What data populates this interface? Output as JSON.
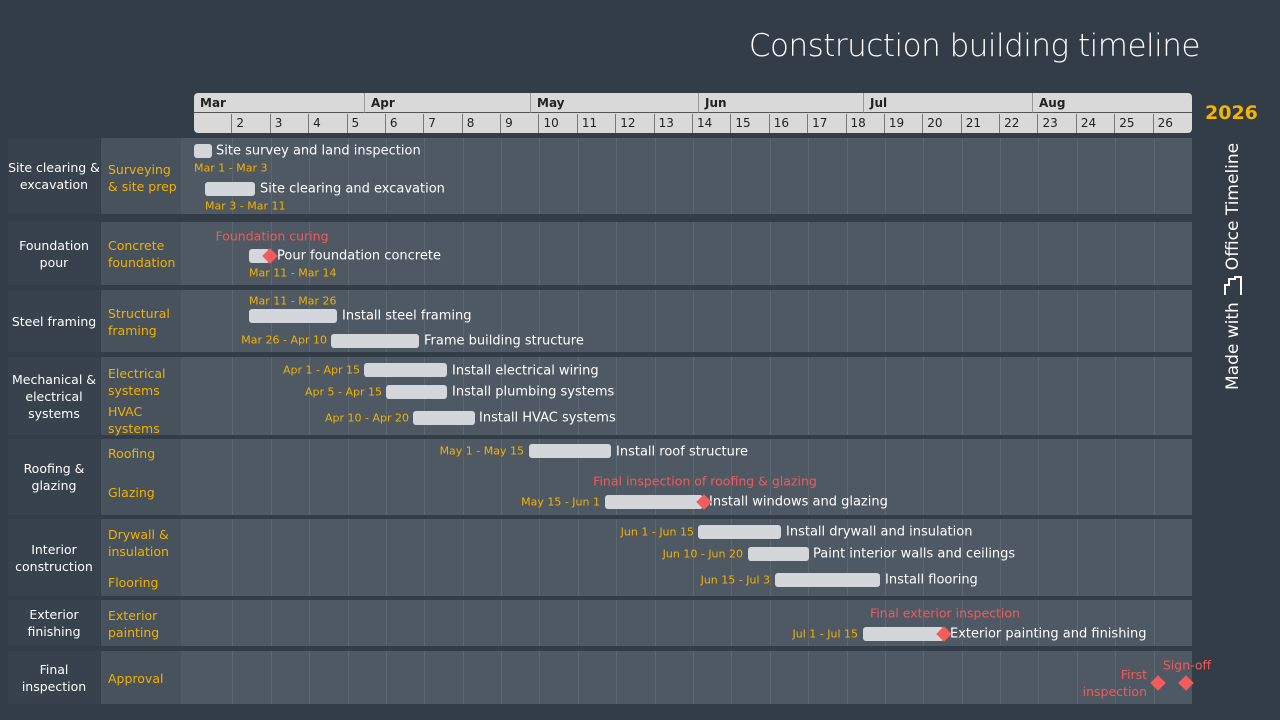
{
  "title": "Construction building timeline",
  "year": "2026",
  "brand": {
    "made_with": "Made with",
    "name": "Office Timeline"
  },
  "months": [
    "Mar",
    "Apr",
    "May",
    "Jun",
    "Jul",
    "Aug"
  ],
  "weeks": [
    "",
    "2",
    "3",
    "4",
    "5",
    "6",
    "7",
    "8",
    "9",
    "10",
    "11",
    "12",
    "13",
    "14",
    "15",
    "16",
    "17",
    "18",
    "19",
    "20",
    "21",
    "22",
    "23",
    "24",
    "25",
    "26"
  ],
  "groups": [
    "Site clearing & excavation",
    "Foundation pour",
    "Steel framing",
    "Mechanical & electrical systems",
    "Roofing & glazing",
    "Interior construction",
    "Exterior finishing",
    "Final inspection"
  ],
  "subgroups": [
    "Surveying & site prep",
    "Concrete foundation",
    "Structural framing",
    "Electrical systems",
    "HVAC systems",
    "Roofing",
    "Glazing",
    "Drywall & insulation",
    "Flooring",
    "Exterior painting",
    "Approval"
  ],
  "tasks": [
    {
      "name": "Site survey and land inspection",
      "dates": "Mar 1 - Mar 3"
    },
    {
      "name": "Site clearing and excavation",
      "dates": "Mar 3 - Mar 11"
    },
    {
      "name": "Pour foundation concrete",
      "dates": "Mar 11 - Mar 14"
    },
    {
      "name": "Install steel framing",
      "dates": "Mar 11 - Mar 26"
    },
    {
      "name": "Frame building structure",
      "dates": "Mar 26 - Apr 10"
    },
    {
      "name": "Install electrical wiring",
      "dates": "Apr 1 - Apr 15"
    },
    {
      "name": "Install plumbing systems",
      "dates": "Apr 5 - Apr 15"
    },
    {
      "name": "Install HVAC systems",
      "dates": "Apr 10 - Apr 20"
    },
    {
      "name": "Install roof structure",
      "dates": "May 1 - May 15"
    },
    {
      "name": "Install windows and glazing",
      "dates": "May 15 - Jun 1"
    },
    {
      "name": "Install drywall and insulation",
      "dates": "Jun 1 - Jun 15"
    },
    {
      "name": "Paint interior walls and ceilings",
      "dates": "Jun 10 - Jun 20"
    },
    {
      "name": "Install flooring",
      "dates": "Jun 15 - Jul 3"
    },
    {
      "name": "Exterior painting and finishing",
      "dates": "Jul 1 - Jul 15"
    }
  ],
  "milestones": [
    "Foundation curing",
    "Final inspection of roofing & glazing",
    "Final exterior inspection",
    "First inspection",
    "Sign-off"
  ],
  "colors": {
    "background": "#323d48",
    "task_bar": "#d3d7db",
    "date_text": "#f2b100",
    "milestone": "#f25c5c"
  }
}
